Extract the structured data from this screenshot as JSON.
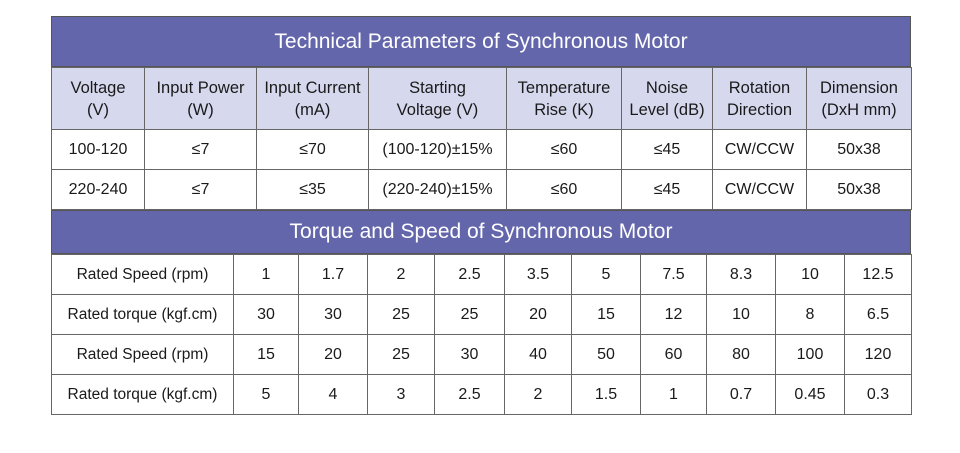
{
  "section1": {
    "title": "Technical Parameters of Synchronous Motor",
    "headers": [
      [
        "Voltage",
        "(V)"
      ],
      [
        "Input Power",
        "(W)"
      ],
      [
        "Input Current",
        "(mA)"
      ],
      [
        "Starting",
        "Voltage (V)"
      ],
      [
        "Temperature",
        "Rise (K)"
      ],
      [
        "Noise",
        "Level (dB)"
      ],
      [
        "Rotation",
        "Direction"
      ],
      [
        "Dimension",
        "(DxH mm)"
      ]
    ],
    "rows": [
      [
        "100-120",
        "≤7",
        "≤70",
        "(100-120)±15%",
        "≤60",
        "≤45",
        "CW/CCW",
        "50x38"
      ],
      [
        "220-240",
        "≤7",
        "≤35",
        "(220-240)±15%",
        "≤60",
        "≤45",
        "CW/CCW",
        "50x38"
      ]
    ]
  },
  "section2": {
    "title": "Torque and Speed of Synchronous Motor",
    "rows": [
      {
        "label": "Rated Speed (rpm)",
        "values": [
          "1",
          "1.7",
          "2",
          "2.5",
          "3.5",
          "5",
          "7.5",
          "8.3",
          "10",
          "12.5"
        ]
      },
      {
        "label": "Rated torque (kgf.cm)",
        "values": [
          "30",
          "30",
          "25",
          "25",
          "20",
          "15",
          "12",
          "10",
          "8",
          "6.5"
        ]
      },
      {
        "label": "Rated Speed (rpm)",
        "values": [
          "15",
          "20",
          "25",
          "30",
          "40",
          "50",
          "60",
          "80",
          "100",
          "120"
        ]
      },
      {
        "label": "Rated torque (kgf.cm)",
        "values": [
          "5",
          "4",
          "3",
          "2.5",
          "2",
          "1.5",
          "1",
          "0.7",
          "0.45",
          "0.3"
        ]
      }
    ]
  }
}
